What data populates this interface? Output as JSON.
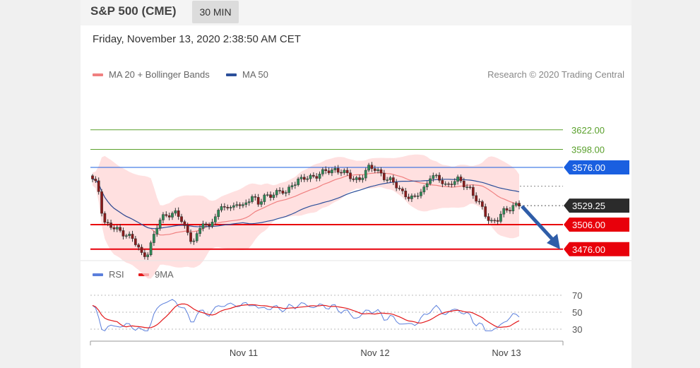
{
  "header": {
    "title": "S&P 500 (CME)",
    "timeframe": "30 MIN"
  },
  "timestamp": "Friday, November 13, 2020 2:38:50 AM CET",
  "legend": {
    "ma20": {
      "label": "MA 20 + Bollinger Bands",
      "color": "#f08080"
    },
    "ma50": {
      "label": "MA 50",
      "color": "#2b4f9a"
    },
    "rsi": {
      "label": "RSI",
      "color": "#5b7fdc"
    },
    "ma9": {
      "label": "9MA",
      "color": "#e31a1c"
    }
  },
  "credit": "Research © 2020 Trading Central",
  "chart_data": {
    "type": "candlestick",
    "x_ticks": [
      "Nov 11",
      "Nov 12",
      "Nov 13"
    ],
    "price_levels": [
      {
        "value": 3622.0,
        "label": "3622.00",
        "kind": "target",
        "color": "#5aa02c"
      },
      {
        "value": 3598.0,
        "label": "3598.00",
        "kind": "target",
        "color": "#5aa02c"
      },
      {
        "value": 3576.0,
        "label": "3576.00",
        "kind": "pivot",
        "color": "#1a5fe0"
      },
      {
        "value": 3529.25,
        "label": "3529.25",
        "kind": "last",
        "color": "#2b2b2b"
      },
      {
        "value": 3506.0,
        "label": "3506.00",
        "kind": "support",
        "color": "#e8000b"
      },
      {
        "value": 3476.0,
        "label": "3476.00",
        "kind": "support",
        "color": "#e8000b"
      }
    ],
    "close_path": [
      3560,
      3552,
      3510,
      3505,
      3500,
      3498,
      3495,
      3490,
      3480,
      3468,
      3473,
      3490,
      3510,
      3518,
      3520,
      3519,
      3512,
      3498,
      3486,
      3492,
      3510,
      3502,
      3518,
      3522,
      3530,
      3526,
      3534,
      3524,
      3536,
      3542,
      3532,
      3538,
      3542,
      3546,
      3548,
      3542,
      3556,
      3561,
      3563,
      3561,
      3566,
      3569,
      3572,
      3569,
      3575,
      3572,
      3567,
      3560,
      3562,
      3569,
      3576,
      3573,
      3570,
      3562,
      3558,
      3552,
      3546,
      3540,
      3536,
      3546,
      3552,
      3566,
      3562,
      3560,
      3554,
      3558,
      3560,
      3556,
      3552,
      3538,
      3529,
      3518,
      3510,
      3510,
      3521,
      3526,
      3530,
      3529
    ],
    "rsi": {
      "levels": [
        70,
        50,
        30
      ]
    }
  }
}
